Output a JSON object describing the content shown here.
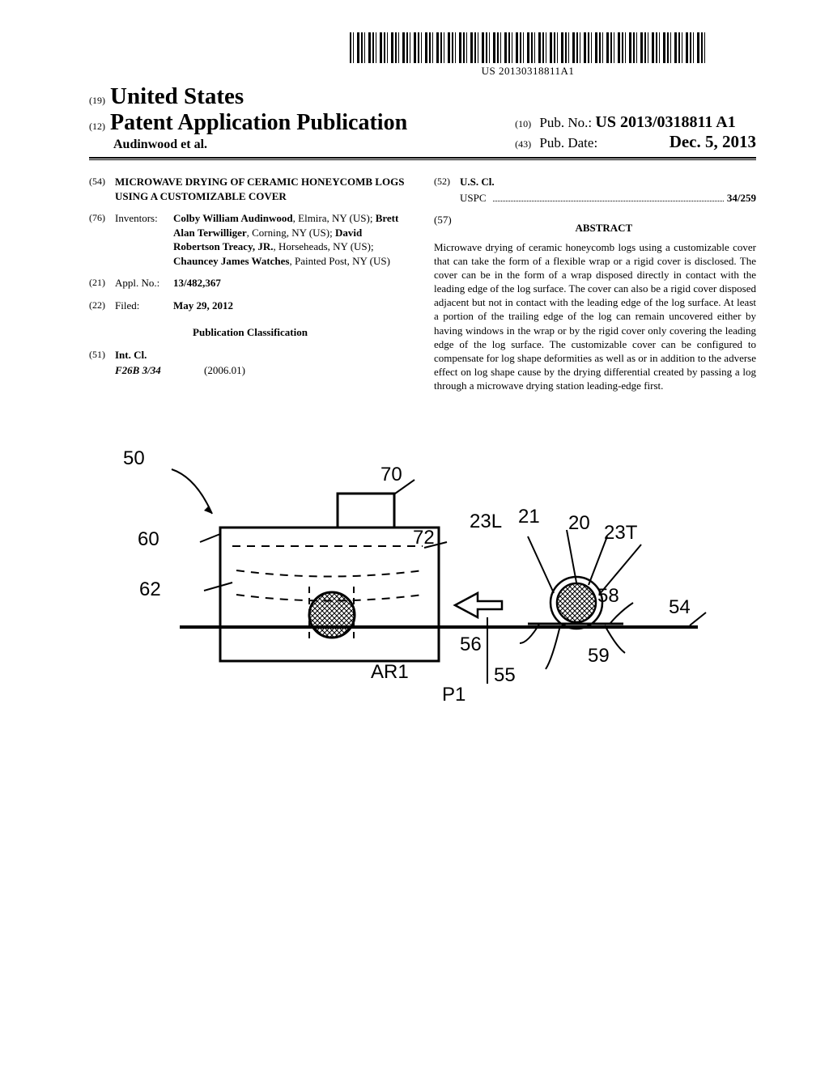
{
  "barcode_text": "US 20130318811A1",
  "header": {
    "country_num": "(19)",
    "country": "United States",
    "type_num": "(12)",
    "type": "Patent Application Publication",
    "authors_suffix": "Audinwood et al.",
    "pubno_num": "(10)",
    "pubno_label": "Pub. No.:",
    "pubno_value": "US 2013/0318811 A1",
    "pubdate_num": "(43)",
    "pubdate_label": "Pub. Date:",
    "pubdate_value": "Dec. 5, 2013"
  },
  "left": {
    "title_num": "(54)",
    "title": "MICROWAVE DRYING OF CERAMIC HONEYCOMB LOGS USING A CUSTOMIZABLE COVER",
    "inventors_num": "(76)",
    "inventors_label": "Inventors:",
    "inventors_html": "Colby William Audinwood|, Elmira, NY (US); |Brett Alan Terwilliger|, Corning, NY (US); |David Robertson Treacy, JR.|, Horseheads, NY (US); |Chauncey James Watches|, Painted Post, NY (US)",
    "applno_num": "(21)",
    "applno_label": "Appl. No.:",
    "applno_value": "13/482,367",
    "filed_num": "(22)",
    "filed_label": "Filed:",
    "filed_value": "May 29, 2012",
    "classification_heading": "Publication Classification",
    "intcl_num": "(51)",
    "intcl_label": "Int. Cl.",
    "intcl_code": "F26B 3/34",
    "intcl_year": "(2006.01)"
  },
  "right": {
    "uscl_num": "(52)",
    "uscl_label": "U.S. Cl.",
    "uspc_label": "USPC",
    "uspc_value": "34/259",
    "abstract_num": "(57)",
    "abstract_label": "ABSTRACT",
    "abstract_text": "Microwave drying of ceramic honeycomb logs using a customizable cover that can take the form of a flexible wrap or a rigid cover is disclosed. The cover can be in the form of a wrap disposed directly in contact with the leading edge of the log surface. The cover can also be a rigid cover disposed adjacent but not in contact with the leading edge of the log surface. At least a portion of the trailing edge of the log can remain uncovered either by having windows in the wrap or by the rigid cover only covering the leading edge of the log surface. The customizable cover can be configured to compensate for log shape deformities as well as or in addition to the adverse effect on log shape cause by the drying differential created by passing a log through a microwave drying station leading-edge first."
  },
  "figure": {
    "labels": {
      "50": "50",
      "70": "70",
      "60": "60",
      "62": "62",
      "72": "72",
      "23L": "23L",
      "21": "21",
      "20": "20",
      "23T": "23T",
      "56": "56",
      "58": "58",
      "54": "54",
      "59": "59",
      "55": "55",
      "AR1": "AR1",
      "P1": "P1"
    }
  }
}
